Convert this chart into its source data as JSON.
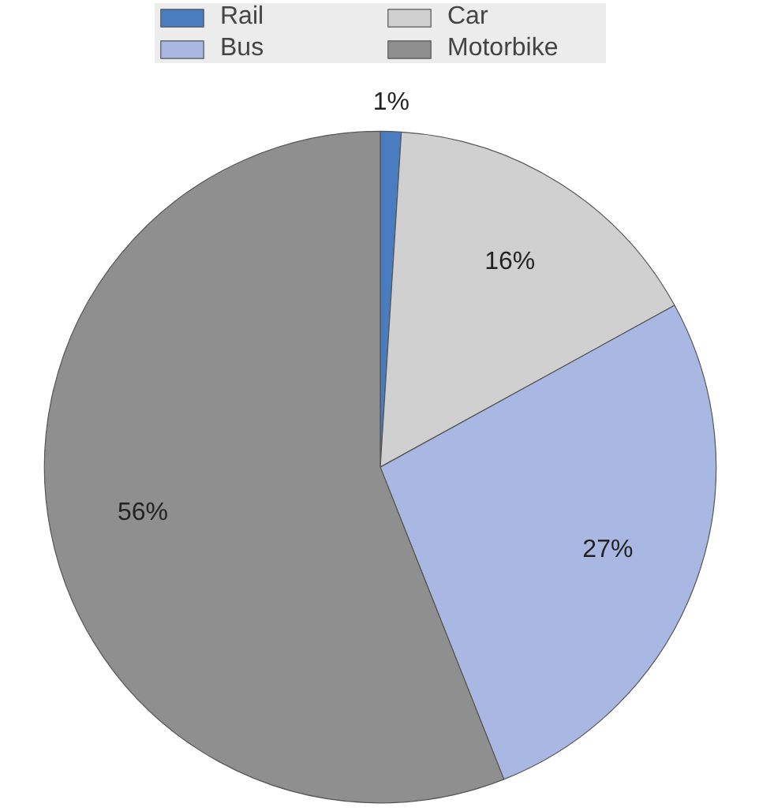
{
  "chart_data": {
    "type": "pie",
    "categories": [
      "Rail",
      "Car",
      "Bus",
      "Motorbike"
    ],
    "values": [
      1,
      16,
      27,
      56
    ],
    "value_labels": [
      "1%",
      "16%",
      "27%",
      "56%"
    ],
    "colors": [
      "#4a7dbf",
      "#d0d0d0",
      "#a8b8e3",
      "#8f8f8f"
    ],
    "legend": "top"
  }
}
